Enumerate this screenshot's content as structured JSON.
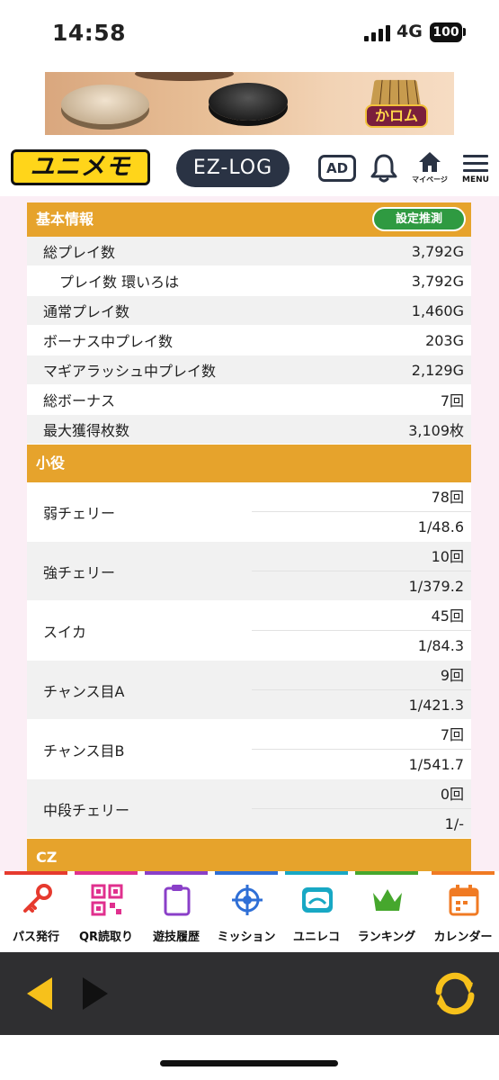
{
  "status_bar": {
    "time": "14:58",
    "network": "4G",
    "battery": "100"
  },
  "ad_banner": {
    "game_name": "かロム"
  },
  "header": {
    "brand": "ユニメモ",
    "ezlog": "EZ-LOG",
    "ad_label": "AD",
    "mypage_label": "マイページ",
    "menu_label": "MENU"
  },
  "basic_info": {
    "title": "基本情報",
    "estimate_button": "設定推測",
    "rows": [
      {
        "label": "総プレイ数",
        "value": "3,792G"
      },
      {
        "label": "プレイ数 環いろは",
        "value": "3,792G"
      },
      {
        "label": "通常プレイ数",
        "value": "1,460G"
      },
      {
        "label": "ボーナス中プレイ数",
        "value": "203G"
      },
      {
        "label": "マギアラッシュ中プレイ数",
        "value": "2,129G"
      },
      {
        "label": "総ボーナス",
        "value": "7回"
      },
      {
        "label": "最大獲得枚数",
        "value": "3,109枚"
      }
    ]
  },
  "small_roles": {
    "title": "小役",
    "rows": [
      {
        "label": "弱チェリー",
        "count": "78回",
        "rate": "1/48.6"
      },
      {
        "label": "強チェリー",
        "count": "10回",
        "rate": "1/379.2"
      },
      {
        "label": "スイカ",
        "count": "45回",
        "rate": "1/84.3"
      },
      {
        "label": "チャンス目A",
        "count": "9回",
        "rate": "1/421.3"
      },
      {
        "label": "チャンス目B",
        "count": "7回",
        "rate": "1/541.7"
      },
      {
        "label": "中段チェリー",
        "count": "0回",
        "rate": "1/-"
      }
    ]
  },
  "cz": {
    "title": "CZ"
  },
  "bottom_nav": [
    {
      "label": "パス発行",
      "icon": "key-icon",
      "color": "#e63a2e"
    },
    {
      "label": "QR読取り",
      "icon": "qr-icon",
      "color": "#e0308e"
    },
    {
      "label": "遊技履歴",
      "icon": "clipboard-icon",
      "color": "#8a3fc8"
    },
    {
      "label": "ミッション",
      "icon": "target-icon",
      "color": "#2f6fd6"
    },
    {
      "label": "ユニレコ",
      "icon": "unireco-icon",
      "color": "#18a8c4"
    },
    {
      "label": "ランキング",
      "icon": "crown-icon",
      "color": "#46a72d"
    },
    {
      "label": "カレンダー",
      "icon": "calendar-icon",
      "color": "#f07a23"
    }
  ]
}
